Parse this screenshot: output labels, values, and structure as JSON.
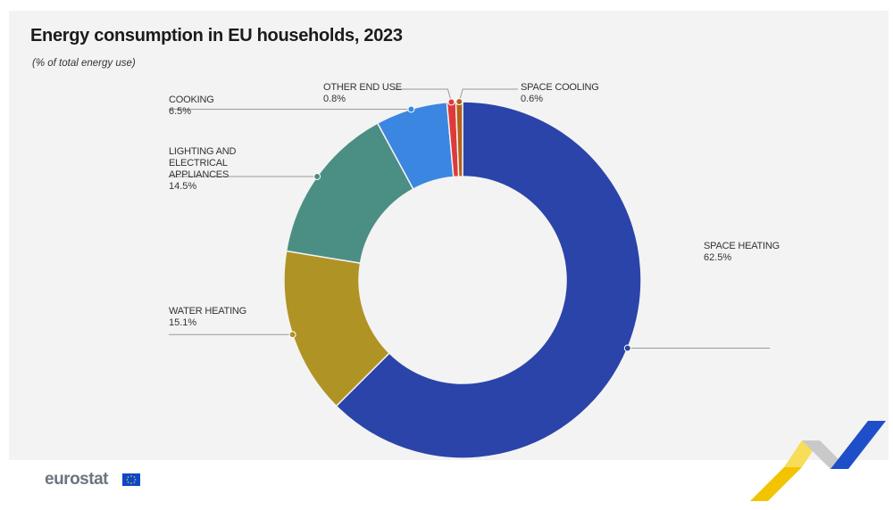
{
  "header": {
    "title": "Energy consumption in EU households, 2023",
    "subtitle": "(% of total energy use)"
  },
  "footer": {
    "logo_text": "eurostat"
  },
  "chart_data": {
    "type": "pie",
    "variant": "donut",
    "title": "Energy consumption in EU households, 2023",
    "subtitle": "(% of total energy use)",
    "slices": [
      {
        "name": "SPACE HEATING",
        "value": 62.5,
        "label": "62.5%",
        "color": "#2a44a9"
      },
      {
        "name": "WATER HEATING",
        "value": 15.1,
        "label": "15.1%",
        "color": "#b09325"
      },
      {
        "name": "LIGHTING AND ELECTRICAL APPLIANCES",
        "value": 14.5,
        "label": "14.5%",
        "color": "#4b8e84"
      },
      {
        "name": "COOKING",
        "value": 6.5,
        "label": "6.5%",
        "color": "#3b86e0"
      },
      {
        "name": "OTHER END USE",
        "value": 0.8,
        "label": "0.8%",
        "color": "#df3a3a"
      },
      {
        "name": "SPACE COOLING",
        "value": 0.6,
        "label": "0.6%",
        "color": "#b3621b"
      }
    ]
  },
  "colors": {
    "panel_background": "#f3f3f3",
    "deco_yellow": "#f2c400",
    "deco_blue": "#1f4fc8"
  }
}
